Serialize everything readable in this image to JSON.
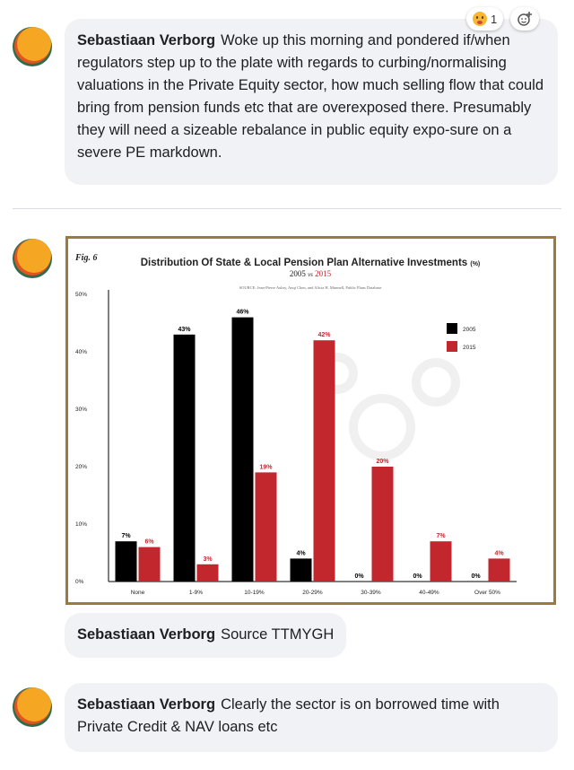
{
  "comments": [
    {
      "author": "Sebastiaan Verborg",
      "text": "Woke up this morning and pondered if/when regulators step up to the plate with regards to curbing/normalising valuations in the Private Equity sector, how much selling flow that could bring from pension funds etc that are overexposed there. Presumably they will need a sizeable rebalance in public equity expo-sure on a severe PE markdown.",
      "reactions": {
        "count": "1",
        "emoji_icon": "wow-emoji-icon",
        "add_icon": "add-reaction-icon"
      }
    },
    {
      "author": "Sebastiaan Verborg",
      "text": "Source TTMYGH"
    },
    {
      "author": "Sebastiaan Verborg",
      "text": "Clearly the sector is on borrowed time with Private Credit & NAV loans etc"
    }
  ],
  "chart_data": {
    "type": "bar",
    "fig_label": "Fig. 6",
    "title": "Distribution Of State & Local Pension Plan Alternative Investments",
    "title_unit": "(%)",
    "subtitle_a": "2005",
    "subtitle_vs": "vs",
    "subtitle_b": "2015",
    "source": "SOURCE: Jean-Pierre Aubry, Anqi Chen, and Alicia H. Munnell, Public Plans Database",
    "categories": [
      "None",
      "1-9%",
      "10-19%",
      "20-29%",
      "30-39%",
      "40-49%",
      "Over 50%"
    ],
    "series": [
      {
        "name": "2005",
        "values": [
          7,
          43,
          46,
          4,
          0,
          0,
          0
        ],
        "labels": [
          "7%",
          "43%",
          "46%",
          "4%",
          "0%",
          "0%",
          "0%"
        ],
        "color": "#000000"
      },
      {
        "name": "2015",
        "values": [
          6,
          3,
          19,
          42,
          20,
          7,
          4
        ],
        "labels": [
          "6%",
          "3%",
          "19%",
          "42%",
          "20%",
          "7%",
          "4%"
        ],
        "color": "#c1272d"
      }
    ],
    "y_ticks": [
      "0%",
      "10%",
      "20%",
      "30%",
      "40%",
      "50%"
    ],
    "ylim": [
      0,
      50
    ],
    "legend_position": "top-right",
    "grid": false
  }
}
